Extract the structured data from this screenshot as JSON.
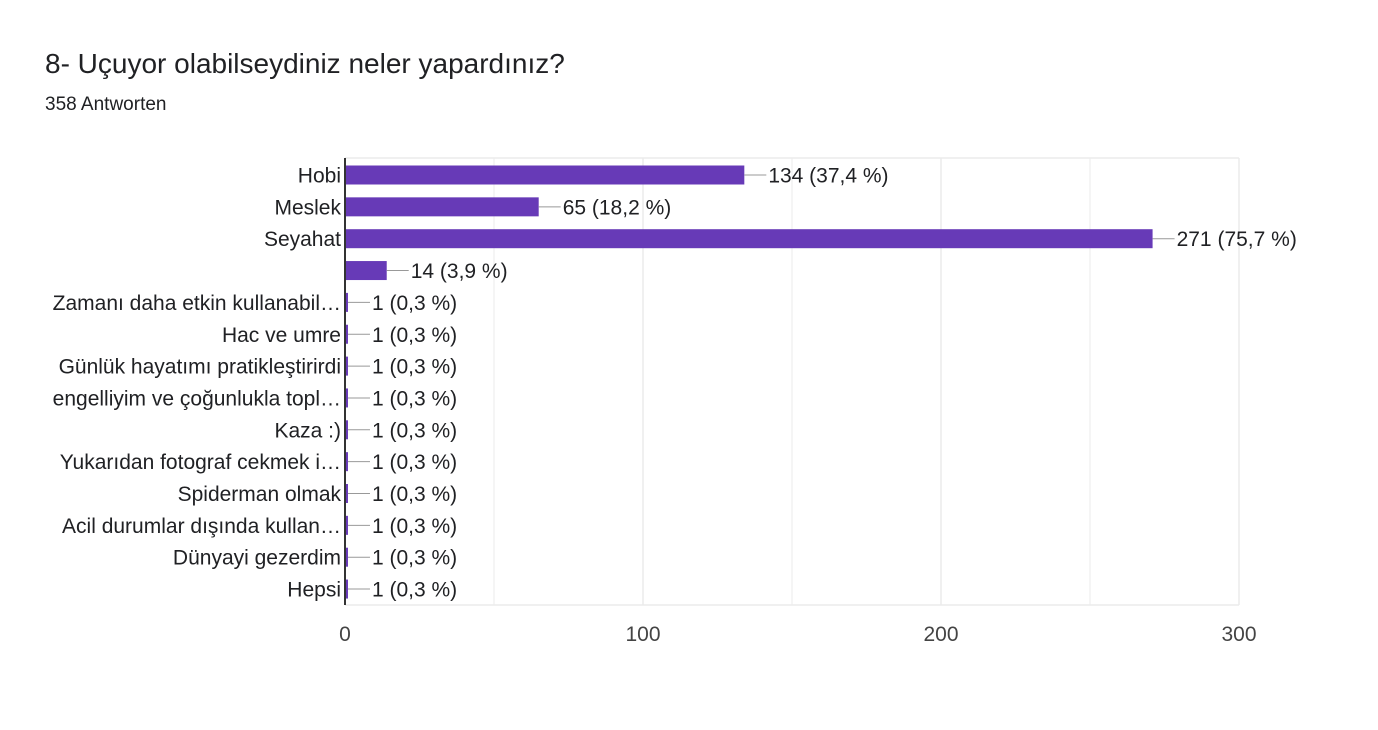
{
  "header": {
    "title": "8- Uçuyor olabilseydiniz neler yapardınız?",
    "subtitle": "358 Antworten"
  },
  "colors": {
    "bar": "#673ab7",
    "text": "#202124",
    "axis_text": "#444444",
    "grid": "#ebebeb",
    "axis_line": "#333333",
    "leader": "#999999"
  },
  "chart_data": {
    "type": "bar",
    "orientation": "horizontal",
    "categories": [
      "Hobi",
      "Meslek",
      "Seyahat",
      "",
      "Zamanı daha etkin kullanabil…",
      "Hac ve umre",
      "Günlük hayatımı pratikleştirirdi",
      "engelliyim ve çoğunlukla topl…",
      "Kaza :)",
      "Yukarıdan fotograf cekmek i…",
      "Spiderman olmak",
      "Acil durumlar dışında kullan…",
      "Dünyayi gezerdim",
      "Hepsi"
    ],
    "values": [
      134,
      65,
      271,
      14,
      1,
      1,
      1,
      1,
      1,
      1,
      1,
      1,
      1,
      1
    ],
    "data_labels": [
      "134 (37,4 %)",
      "65 (18,2 %)",
      "271 (75,7 %)",
      "14 (3,9 %)",
      "1 (0,3 %)",
      "1 (0,3 %)",
      "1 (0,3 %)",
      "1 (0,3 %)",
      "1 (0,3 %)",
      "1 (0,3 %)",
      "1 (0,3 %)",
      "1 (0,3 %)",
      "1 (0,3 %)",
      "1 (0,3 %)"
    ],
    "xlim": [
      0,
      300
    ],
    "x_ticks": [
      "0",
      "100",
      "200",
      "300"
    ],
    "grid": true
  }
}
